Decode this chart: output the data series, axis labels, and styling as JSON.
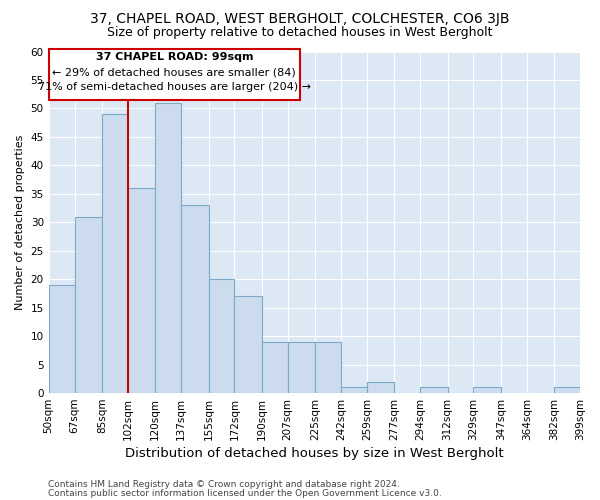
{
  "title1": "37, CHAPEL ROAD, WEST BERGHOLT, COLCHESTER, CO6 3JB",
  "title2": "Size of property relative to detached houses in West Bergholt",
  "xlabel": "Distribution of detached houses by size in West Bergholt",
  "ylabel": "Number of detached properties",
  "footer1": "Contains HM Land Registry data © Crown copyright and database right 2024.",
  "footer2": "Contains public sector information licensed under the Open Government Licence v3.0.",
  "annotation_title": "37 CHAPEL ROAD: 99sqm",
  "annotation_line1": "← 29% of detached houses are smaller (84)",
  "annotation_line2": "71% of semi-detached houses are larger (204) →",
  "bin_edges": [
    50,
    67,
    85,
    102,
    120,
    137,
    155,
    172,
    190,
    207,
    225,
    242,
    259,
    277,
    294,
    312,
    329,
    347,
    364,
    382,
    399
  ],
  "bar_heights": [
    19,
    31,
    49,
    36,
    51,
    33,
    20,
    17,
    9,
    9,
    9,
    1,
    2,
    0,
    1,
    0,
    1,
    0,
    0,
    1
  ],
  "bar_color": "#ccdcee",
  "bar_edge_color": "#7aaac8",
  "vline_x": 102,
  "vline_color": "#cc0000",
  "ylim": [
    0,
    60
  ],
  "yticks": [
    0,
    5,
    10,
    15,
    20,
    25,
    30,
    35,
    40,
    45,
    50,
    55,
    60
  ],
  "plot_bg_color": "#dde8f5",
  "fig_bg_color": "#ffffff",
  "grid_color": "#ffffff",
  "annotation_box_color": "#ffffff",
  "annotation_box_edge": "#cc0000",
  "title1_fontsize": 10,
  "title2_fontsize": 9,
  "xlabel_fontsize": 9.5,
  "ylabel_fontsize": 8,
  "tick_fontsize": 7.5,
  "annotation_fontsize": 8,
  "footer_fontsize": 6.5
}
